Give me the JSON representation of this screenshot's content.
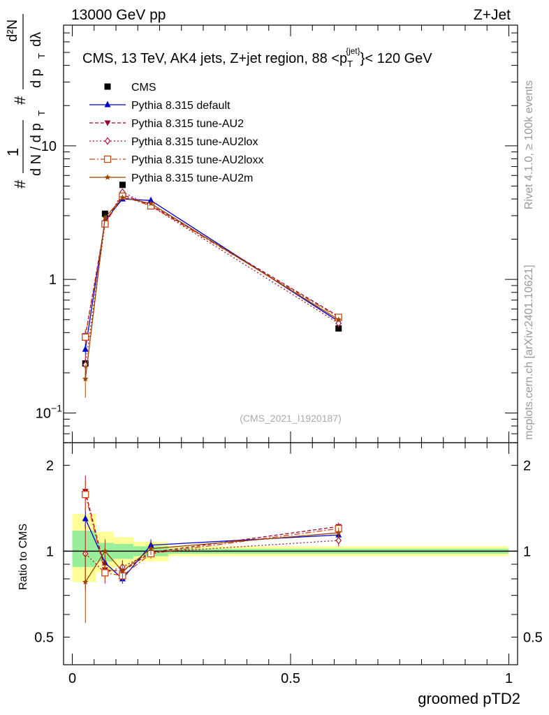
{
  "header": {
    "left": "13000 GeV pp",
    "right": "Z+Jet"
  },
  "side_labels": {
    "rivet": "Rivet 4.1.0, ≥ 100k events",
    "mcplots": "mcplots.cern.ch [arXiv:2401.10621]"
  },
  "chart_data": [
    {
      "type": "line",
      "panel": "main",
      "title": "CMS, 13 TeV, AK4 jets, Z+jet region, 88 <p_T^{jet}< 120 GeV",
      "title_parts": {
        "pre": "CMS, 13 TeV, AK4 jets, Z+jet region, 88 <p",
        "sub": "T",
        "sup": "{jet}",
        "post": "}< 120 GeV"
      },
      "ylabel": "1/(dN/dp_T) d²N/(dp_T dλ)",
      "ylabel_parts": {
        "one": "1",
        "sharp": "#",
        "dN": "d N / d p",
        "T": "T",
        "d2N": "d²N",
        "dpTdl": "d p",
        "lambda": "dλ"
      },
      "yscale": "log",
      "ylim": [
        0.06,
        80
      ],
      "yticks": [
        {
          "value": 0.1,
          "base": "10",
          "exp": "−1"
        },
        {
          "value": 1,
          "label": "1"
        },
        {
          "value": 10,
          "label": "10"
        }
      ],
      "watermark": "(CMS_2021_I1920187)",
      "x": [
        0.03,
        0.075,
        0.115,
        0.18,
        0.61
      ],
      "series": [
        {
          "name": "CMS",
          "color": "#000000",
          "marker": "square",
          "dash": "",
          "values": [
            0.235,
            3.1,
            5.1,
            3.6,
            0.43
          ],
          "err": [
            0.02,
            0.12,
            0.15,
            0.1,
            0.015
          ]
        },
        {
          "name": "Pythia 8.315 default",
          "color": "#0000cc",
          "marker": "triangle-up",
          "dash": "",
          "values": [
            0.3,
            2.75,
            4.0,
            3.9,
            0.485
          ],
          "err": [
            0.03,
            0.1,
            0.12,
            0.1,
            0.015
          ]
        },
        {
          "name": "Pythia 8.315 tune-AU2",
          "color": "#990033",
          "marker": "triangle-down",
          "dash": "5,3",
          "values": [
            0.38,
            2.65,
            4.3,
            3.6,
            0.53
          ],
          "err": [
            0.04,
            0.1,
            0.12,
            0.1,
            0.02
          ]
        },
        {
          "name": "Pythia 8.315 tune-AU2lox",
          "color": "#aa1133",
          "marker": "diamond",
          "dash": "2,3",
          "values": [
            0.23,
            2.6,
            4.5,
            3.55,
            0.47
          ],
          "err": [
            0.04,
            0.1,
            0.12,
            0.1,
            0.02
          ]
        },
        {
          "name": "Pythia 8.315 tune-AU2loxx",
          "color": "#cc4411",
          "marker": "square-open",
          "dash": "8,3,2,3",
          "values": [
            0.37,
            2.6,
            4.2,
            3.55,
            0.52
          ],
          "err": [
            0.04,
            0.1,
            0.12,
            0.1,
            0.02
          ]
        },
        {
          "name": "Pythia 8.315 tune-AU2m",
          "color": "#994400",
          "marker": "star",
          "dash": "",
          "values": [
            0.18,
            2.9,
            4.1,
            3.7,
            0.5
          ],
          "err": [
            0.05,
            0.15,
            0.15,
            0.1,
            0.02
          ]
        }
      ]
    },
    {
      "type": "line",
      "panel": "ratio",
      "ylabel": "Ratio to CMS",
      "ylim": [
        0.4,
        2.4
      ],
      "yticks": [
        0.5,
        1,
        2
      ],
      "yticklabels": [
        "0.5",
        "1",
        "2"
      ],
      "xlabel": "groomed pTD2",
      "xlim": [
        -0.02,
        1.02
      ],
      "xticks": [
        0,
        0.5,
        1
      ],
      "xticklabels": [
        "0",
        "0.5",
        "1"
      ],
      "bands": [
        {
          "x0": 0.0,
          "x1": 0.055,
          "inner": [
            0.88,
            1.18
          ],
          "outer": [
            0.78,
            1.35
          ]
        },
        {
          "x0": 0.055,
          "x1": 0.095,
          "inner": [
            0.92,
            1.07
          ],
          "outer": [
            0.84,
            1.17
          ]
        },
        {
          "x0": 0.095,
          "x1": 0.14,
          "inner": [
            0.94,
            1.06
          ],
          "outer": [
            0.88,
            1.12
          ]
        },
        {
          "x0": 0.14,
          "x1": 0.22,
          "inner": [
            0.96,
            1.04
          ],
          "outer": [
            0.92,
            1.08
          ]
        },
        {
          "x0": 0.22,
          "x1": 1.0,
          "inner": [
            0.98,
            1.02
          ],
          "outer": [
            0.96,
            1.04
          ]
        }
      ],
      "series": [
        {
          "name": "Pythia 8.315 default",
          "values": [
            1.3,
            0.91,
            0.8,
            1.05,
            1.14
          ],
          "err": [
            0.1,
            0.06,
            0.03,
            0.05,
            0.03
          ]
        },
        {
          "name": "Pythia 8.315 tune-AU2",
          "values": [
            1.62,
            0.86,
            0.85,
            0.99,
            1.22
          ],
          "err": [
            0.22,
            0.06,
            0.04,
            0.04,
            0.04
          ]
        },
        {
          "name": "Pythia 8.315 tune-AU2lox",
          "values": [
            0.98,
            0.84,
            0.88,
            0.99,
            1.09
          ],
          "err": [
            0.25,
            0.07,
            0.05,
            0.05,
            0.05
          ]
        },
        {
          "name": "Pythia 8.315 tune-AU2loxx",
          "values": [
            1.58,
            0.84,
            0.82,
            0.98,
            1.2
          ],
          "err": [
            0.2,
            0.06,
            0.04,
            0.04,
            0.04
          ]
        },
        {
          "name": "Pythia 8.315 tune-AU2m",
          "values": [
            0.78,
            1.0,
            0.85,
            1.02,
            1.16
          ],
          "err": [
            0.22,
            0.1,
            0.05,
            0.05,
            0.05
          ]
        }
      ]
    }
  ]
}
